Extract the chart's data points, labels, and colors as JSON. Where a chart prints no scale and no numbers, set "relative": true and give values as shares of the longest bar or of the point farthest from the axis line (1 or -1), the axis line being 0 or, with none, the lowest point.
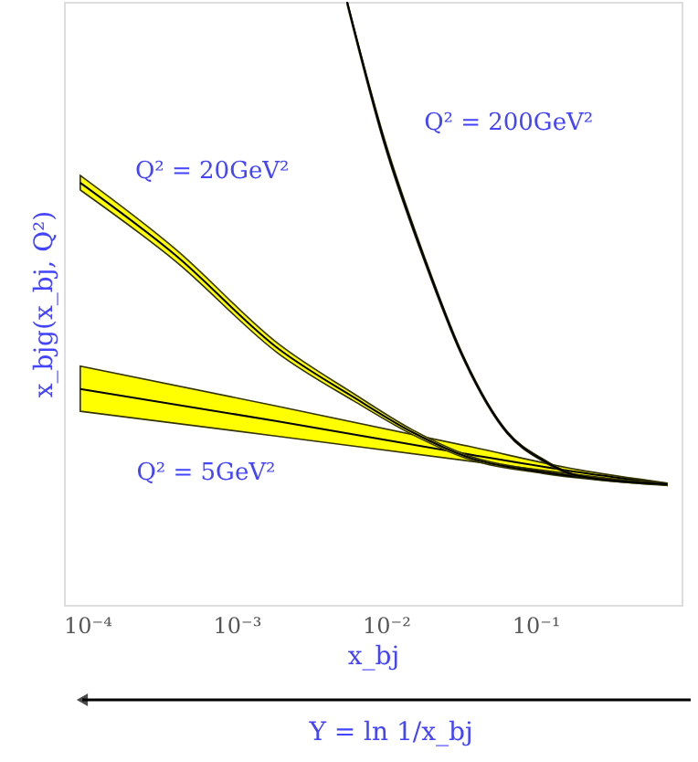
{
  "chart_data": {
    "type": "line",
    "relative": true,
    "xlabel": "x_bj",
    "ylabel": "x_bjg(x_bj, Q²)",
    "log": "x",
    "xlim": [
      7e-05,
      0.95
    ],
    "xticks": [
      {
        "value": 0.0001,
        "label": "10⁻⁴"
      },
      {
        "value": 0.001,
        "label": "10⁻³"
      },
      {
        "value": 0.01,
        "label": "10⁻²"
      },
      {
        "value": 0.1,
        "label": "10⁻¹"
      }
    ],
    "grid": false,
    "marker": "none",
    "line_style": "solid",
    "series": [
      {
        "color": "#000000",
        "x": [
          9e-05,
          0.00183,
          0.0372,
          0.193,
          0.76
        ],
        "values": [
          0.358,
          0.305,
          0.249,
          0.22,
          0.2
        ],
        "lower": [
          0.321,
          0.28,
          0.238,
          0.216,
          0.198
        ],
        "upper": [
          0.396,
          0.33,
          0.262,
          0.224,
          0.202
        ]
      },
      {
        "color": "#000000",
        "x": [
          9e-05,
          0.00039,
          0.0019,
          0.0061,
          0.0151,
          0.0372,
          0.112,
          0.76
        ],
        "values": [
          0.7,
          0.58,
          0.425,
          0.344,
          0.286,
          0.243,
          0.22,
          0.2
        ],
        "lower": [
          0.688,
          0.57,
          0.417,
          0.338,
          0.282,
          0.24,
          0.218,
          0.198
        ],
        "upper": [
          0.712,
          0.59,
          0.433,
          0.35,
          0.29,
          0.246,
          0.222,
          0.202
        ]
      },
      {
        "color": "#000000",
        "x": [
          0.0055,
          0.0097,
          0.0183,
          0.0316,
          0.0646,
          0.112,
          0.193,
          0.76
        ],
        "values": [
          1.0,
          0.77,
          0.57,
          0.42,
          0.286,
          0.24,
          0.214,
          0.2
        ],
        "lower": [
          0.995,
          0.765,
          0.566,
          0.417,
          0.284,
          0.238,
          0.213,
          0.199
        ],
        "upper": [
          1.0,
          0.775,
          0.574,
          0.423,
          0.288,
          0.242,
          0.215,
          0.201
        ]
      }
    ],
    "annotations": [
      "Q² = 5GeV²",
      "Q² = 20GeV²",
      "Q² = 200GeV²",
      "Y = ln 1/x_bj"
    ]
  }
}
